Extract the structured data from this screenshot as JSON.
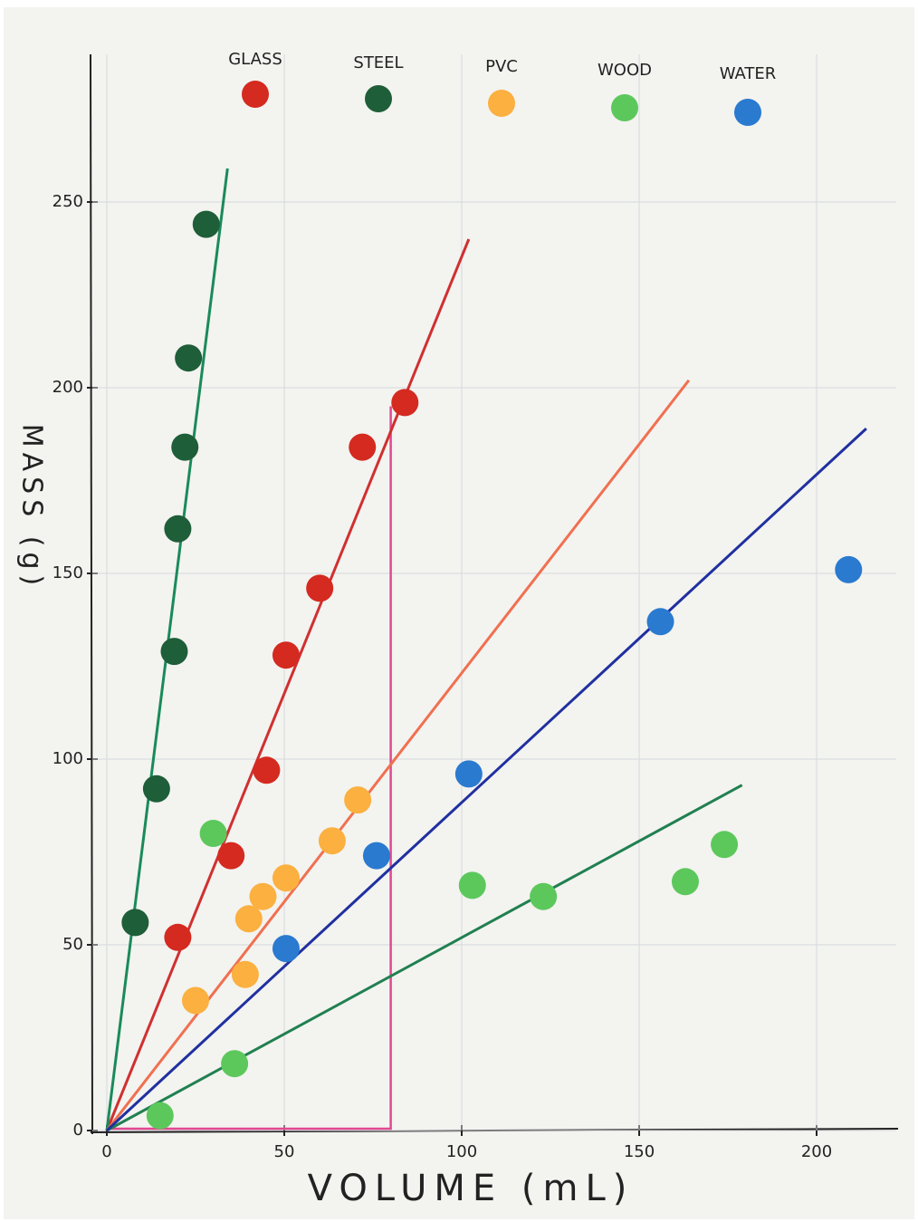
{
  "chart_data": {
    "type": "scatter",
    "xlabel": "VOLUME (mL)",
    "ylabel": "MASS (g)",
    "xlim": [
      0,
      225
    ],
    "ylim": [
      0,
      280
    ],
    "xticks": [
      0,
      50,
      100,
      150,
      200
    ],
    "yticks": [
      0,
      50,
      100,
      150,
      200,
      250
    ],
    "grid": true,
    "legend": "top",
    "series": [
      {
        "name": "GLASS",
        "color": "#d42a20",
        "line_color": "#d03030",
        "x": [
          20,
          35,
          45,
          50.5,
          60,
          72,
          84
        ],
        "y": [
          52,
          74,
          97,
          128,
          146,
          184,
          196
        ],
        "trend": {
          "x": [
            0,
            102
          ],
          "y": [
            0,
            240
          ]
        }
      },
      {
        "name": "STEEL",
        "color": "#1e5e38",
        "line_color": "#1a8a5a",
        "x": [
          8,
          14,
          19,
          20,
          22,
          23,
          28
        ],
        "y": [
          56,
          92,
          129,
          162,
          184,
          208,
          244
        ],
        "trend": {
          "x": [
            0,
            34
          ],
          "y": [
            0,
            259
          ]
        }
      },
      {
        "name": "PVC",
        "color": "#fbb040",
        "line_color": "#f07050",
        "x": [
          25,
          39,
          40,
          44,
          50.5,
          63.5,
          70.7
        ],
        "y": [
          35,
          42,
          57,
          63,
          68,
          78,
          89
        ],
        "trend": {
          "x": [
            0,
            164
          ],
          "y": [
            0,
            202
          ]
        }
      },
      {
        "name": "WOOD",
        "color": "#5cc85c",
        "line_color": "#208050",
        "x": [
          15,
          36,
          30,
          103,
          123,
          163,
          174
        ],
        "y": [
          4,
          18,
          80,
          66,
          63,
          67,
          77
        ],
        "trend": {
          "x": [
            0,
            179
          ],
          "y": [
            0,
            93
          ]
        }
      },
      {
        "name": "WATER",
        "color": "#2a7ad0",
        "line_color": "#2030a0",
        "x": [
          50.5,
          76,
          102,
          156,
          209
        ],
        "y": [
          49,
          74,
          96,
          137,
          151
        ],
        "trend": {
          "x": [
            0,
            214
          ],
          "y": [
            0,
            189
          ]
        }
      }
    ],
    "guide": {
      "x": 80,
      "y": 195,
      "color": "#e04890"
    }
  }
}
